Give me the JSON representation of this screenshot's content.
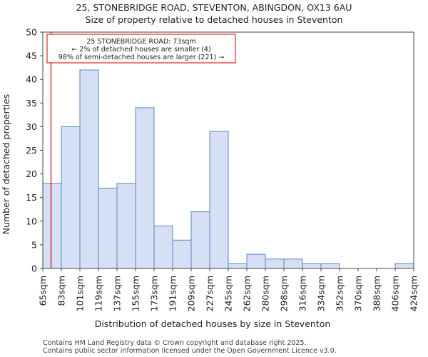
{
  "chart_data": {
    "type": "bar",
    "title_line1": "25, STONEBRIDGE ROAD, STEVENTON, ABINGDON, OX13 6AU",
    "title_line2": "Size of property relative to detached houses in Steventon",
    "xlabel": "Distribution of detached houses by size in Steventon",
    "ylabel": "Number of detached properties",
    "categories": [
      "65sqm",
      "83sqm",
      "101sqm",
      "119sqm",
      "137sqm",
      "155sqm",
      "173sqm",
      "191sqm",
      "209sqm",
      "227sqm",
      "245sqm",
      "262sqm",
      "280sqm",
      "298sqm",
      "316sqm",
      "334sqm",
      "352sqm",
      "370sqm",
      "388sqm",
      "406sqm",
      "424sqm"
    ],
    "bin_values": [
      18,
      30,
      42,
      17,
      18,
      34,
      9,
      6,
      12,
      29,
      1,
      3,
      2,
      2,
      1,
      1,
      0,
      0,
      0,
      1
    ],
    "ylim": [
      0,
      50
    ],
    "yticks": [
      0,
      5,
      10,
      15,
      20,
      25,
      30,
      35,
      40,
      45,
      50
    ],
    "grid": false,
    "bar_fill": "#d6e0f5",
    "bar_stroke": "#5b84c4",
    "marker_color": "#cc0000",
    "marker_value_sqm": 73,
    "annotation_lines": [
      "25 STONEBRIDGE ROAD: 73sqm",
      "← 2% of detached houses are smaller (4)",
      "98% of semi-detached houses are larger (221) →"
    ]
  },
  "footer": {
    "line1": "Contains HM Land Registry data © Crown copyright and database right 2025.",
    "line2": "Contains public sector information licensed under the Open Government Licence v3.0."
  }
}
